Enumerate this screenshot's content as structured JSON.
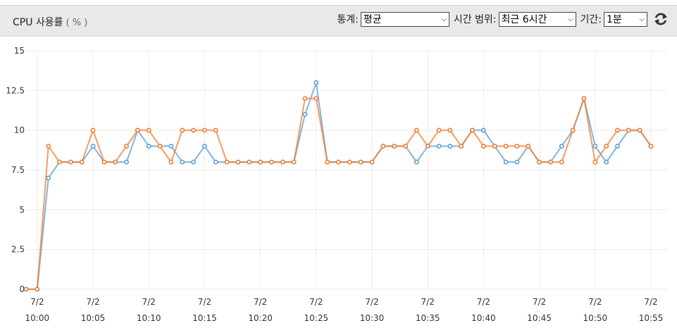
{
  "header": {
    "title": "CPU 사용률",
    "unit": "( % )",
    "stat_label": "통계:",
    "stat_value": "평균",
    "range_label": "시간 범위:",
    "range_value": "최근 6시간",
    "period_label": "기간:",
    "period_value": "1분",
    "refresh_icon": "refresh-icon"
  },
  "colors": {
    "series1": "#5b9bd5",
    "series2": "#ed7d31",
    "grid": "#ebebeb"
  },
  "chart_data": {
    "type": "line",
    "ylim": [
      0,
      15
    ],
    "yticks": [
      "0",
      "2.5",
      "5",
      "7.5",
      "10",
      "12.5",
      "15"
    ],
    "xticks": [
      {
        "date": "7/2",
        "time": "10:00"
      },
      {
        "date": "7/2",
        "time": "10:05"
      },
      {
        "date": "7/2",
        "time": "10:10"
      },
      {
        "date": "7/2",
        "time": "10:15"
      },
      {
        "date": "7/2",
        "time": "10:20"
      },
      {
        "date": "7/2",
        "time": "10:25"
      },
      {
        "date": "7/2",
        "time": "10:30"
      },
      {
        "date": "7/2",
        "time": "10:35"
      },
      {
        "date": "7/2",
        "time": "10:40"
      },
      {
        "date": "7/2",
        "time": "10:45"
      },
      {
        "date": "7/2",
        "time": "10:50"
      },
      {
        "date": "7/2",
        "time": "10:55"
      }
    ],
    "x": [
      "9:59",
      "10:00",
      "10:01",
      "10:02",
      "10:03",
      "10:04",
      "10:05",
      "10:06",
      "10:07",
      "10:08",
      "10:09",
      "10:10",
      "10:11",
      "10:12",
      "10:13",
      "10:14",
      "10:15",
      "10:16",
      "10:17",
      "10:18",
      "10:19",
      "10:20",
      "10:21",
      "10:22",
      "10:23",
      "10:24",
      "10:25",
      "10:26",
      "10:27",
      "10:28",
      "10:29",
      "10:30",
      "10:31",
      "10:32",
      "10:33",
      "10:34",
      "10:35",
      "10:36",
      "10:37",
      "10:38",
      "10:39",
      "10:40",
      "10:41",
      "10:42",
      "10:43",
      "10:44",
      "10:45",
      "10:46",
      "10:47",
      "10:48",
      "10:49",
      "10:50",
      "10:51",
      "10:52",
      "10:53",
      "10:54",
      "10:55"
    ],
    "series": [
      {
        "values": [
          0,
          0,
          7,
          8,
          8,
          8,
          9,
          8,
          8,
          8,
          10,
          9,
          9,
          9,
          8,
          8,
          9,
          8,
          8,
          8,
          8,
          8,
          8,
          8,
          8,
          11,
          13,
          8,
          8,
          8,
          8,
          8,
          9,
          9,
          9,
          8,
          9,
          9,
          9,
          9,
          10,
          10,
          9,
          8,
          8,
          9,
          8,
          8,
          9,
          10,
          12,
          9,
          8,
          9,
          10,
          10,
          9
        ]
      },
      {
        "values": [
          0,
          0,
          9,
          8,
          8,
          8,
          10,
          8,
          8,
          9,
          10,
          10,
          9,
          8,
          10,
          10,
          10,
          10,
          8,
          8,
          8,
          8,
          8,
          8,
          8,
          12,
          12,
          8,
          8,
          8,
          8,
          8,
          9,
          9,
          9,
          10,
          9,
          10,
          10,
          9,
          10,
          9,
          9,
          9,
          9,
          9,
          8,
          8,
          8,
          10,
          12,
          8,
          9,
          10,
          10,
          10,
          9
        ]
      }
    ]
  }
}
